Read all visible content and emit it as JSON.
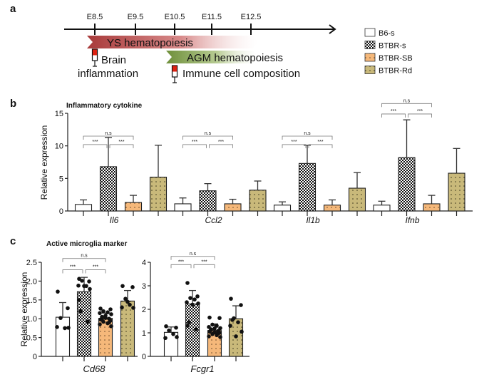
{
  "panel_labels": {
    "a": "a",
    "b": "b",
    "c": "c"
  },
  "timeline": {
    "ticks": [
      "E8.5",
      "E9.5",
      "E10.5",
      "E11.5",
      "E12.5"
    ],
    "ys_banner": "YS hematopoiesis",
    "agm_banner": "AGM hematopoiesis",
    "injection1_line1": "Brain",
    "injection1_line2": "inflammation",
    "injection2": "Immune cell composition",
    "ys_color": "#a83a3a",
    "agm_color": "#6e8f3a"
  },
  "legend": [
    {
      "label": "B6-s",
      "fill": "white"
    },
    {
      "label": "BTBR-s",
      "fill": "checker"
    },
    {
      "label": "BTBR-SB",
      "fill": "#f5b87a"
    },
    {
      "label": "BTBR-Rd",
      "fill": "#c9b97a"
    }
  ],
  "chart_data": [
    {
      "type": "bar",
      "title": "Inflammatory cytokine",
      "ylabel": "Relative expression",
      "ylim": [
        0,
        15
      ],
      "yticks": [
        "0",
        "5",
        "10",
        "15"
      ],
      "categories": [
        "Il6",
        "Ccl2",
        "Il1b",
        "Ifnb"
      ],
      "series": [
        {
          "name": "B6-s",
          "values": [
            1.0,
            1.1,
            0.9,
            0.9
          ],
          "err_top": [
            1.7,
            2.0,
            1.4,
            1.5
          ]
        },
        {
          "name": "BTBR-s",
          "values": [
            6.8,
            3.1,
            7.3,
            8.2
          ],
          "err_top": [
            11.3,
            4.2,
            10.1,
            14.0
          ]
        },
        {
          "name": "BTBR-SB",
          "values": [
            1.3,
            1.1,
            0.9,
            1.1
          ],
          "err_top": [
            2.4,
            1.8,
            1.7,
            2.4
          ]
        },
        {
          "name": "BTBR-Rd",
          "values": [
            5.2,
            3.2,
            3.5,
            5.8
          ],
          "err_top": [
            10.1,
            4.6,
            5.9,
            9.6
          ]
        }
      ],
      "significance": [
        {
          "category": "Il6",
          "pairs": [
            [
              "B6-s",
              "BTBR-s",
              "***"
            ],
            [
              "BTBR-s",
              "BTBR-SB",
              "***"
            ],
            [
              "B6-s",
              "BTBR-SB",
              "n.s"
            ]
          ],
          "levels": [
            10.2,
            11.5
          ]
        },
        {
          "category": "Ccl2",
          "pairs": [
            [
              "B6-s",
              "BTBR-s",
              "***"
            ],
            [
              "BTBR-s",
              "BTBR-SB",
              "***"
            ],
            [
              "B6-s",
              "BTBR-SB",
              "n.s"
            ]
          ],
          "levels": [
            10.2,
            11.5
          ]
        },
        {
          "category": "Il1b",
          "pairs": [
            [
              "B6-s",
              "BTBR-s",
              "***"
            ],
            [
              "BTBR-s",
              "BTBR-SB",
              "***"
            ],
            [
              "B6-s",
              "BTBR-SB",
              "n.s"
            ]
          ],
          "levels": [
            10.2,
            11.5
          ]
        },
        {
          "category": "Ifnb",
          "pairs": [
            [
              "B6-s",
              "BTBR-s",
              "***"
            ],
            [
              "BTBR-s",
              "BTBR-SB",
              "***"
            ],
            [
              "B6-s",
              "BTBR-SB",
              "n.s"
            ]
          ],
          "levels": [
            14.9,
            16.5
          ]
        }
      ]
    },
    {
      "type": "bar",
      "title": "Active microglia marker",
      "ylabel": "Relative expression",
      "category": "Cd68",
      "ylim": [
        0,
        2.5
      ],
      "yticks": [
        "0",
        "0.5",
        "1.0",
        "1.5",
        "2.0",
        "2.5"
      ],
      "series": [
        {
          "name": "B6-s",
          "value": 1.04,
          "err_top": 1.43,
          "points": [
            1.72,
            1.28,
            1.02,
            0.75,
            0.78,
            0.76
          ]
        },
        {
          "name": "BTBR-s",
          "value": 1.72,
          "err_top": 2.1,
          "points": [
            2.06,
            1.99,
            2.01,
            1.87,
            1.88,
            1.79,
            1.87,
            1.2,
            0.92,
            1.5
          ]
        },
        {
          "name": "BTBR-SB",
          "value": 1.01,
          "err_top": 1.15,
          "points": [
            1.27,
            1.25,
            1.2,
            1.17,
            1.15,
            1.12,
            1.08,
            1.05,
            1.0,
            0.98,
            0.95,
            0.92,
            0.88,
            0.85,
            0.8,
            1.02,
            0.97,
            0.9
          ]
        },
        {
          "name": "BTBR-Rd",
          "value": 1.47,
          "err_top": 1.75,
          "points": [
            1.87,
            1.84,
            1.53,
            1.37,
            1.3,
            1.29,
            1.45
          ]
        }
      ],
      "significance": {
        "pairs": [
          [
            "B6-s",
            "BTBR-s",
            "***"
          ],
          [
            "BTBR-s",
            "BTBR-SB",
            "***"
          ],
          [
            "B6-s",
            "BTBR-SB",
            "n.s"
          ]
        ],
        "levels": [
          2.3,
          2.6
        ]
      }
    },
    {
      "type": "bar",
      "category": "Fcgr1",
      "ylim": [
        0,
        4
      ],
      "yticks": [
        "0",
        "1",
        "2",
        "3",
        "4"
      ],
      "series": [
        {
          "name": "B6-s",
          "value": 1.02,
          "err_top": 1.25,
          "points": [
            1.28,
            1.22,
            1.1,
            0.95,
            0.78,
            0.82
          ]
        },
        {
          "name": "BTBR-s",
          "value": 2.23,
          "err_top": 2.8,
          "points": [
            3.12,
            2.55,
            2.48,
            2.42,
            2.3,
            2.25,
            2.2,
            1.45,
            1.15,
            1.3
          ]
        },
        {
          "name": "BTBR-SB",
          "value": 1.1,
          "err_top": 1.38,
          "points": [
            1.65,
            1.63,
            1.35,
            1.3,
            1.25,
            1.2,
            1.18,
            1.12,
            1.08,
            1.05,
            1.0,
            0.95,
            0.9,
            0.85,
            0.82,
            1.02,
            1.15,
            0.98
          ]
        },
        {
          "name": "BTBR-Rd",
          "value": 1.6,
          "err_top": 2.15,
          "points": [
            2.45,
            2.18,
            1.62,
            1.45,
            1.3,
            1.05,
            0.85,
            1.55
          ]
        }
      ],
      "significance": {
        "pairs": [
          [
            "B6-s",
            "BTBR-s",
            "***"
          ],
          [
            "BTBR-s",
            "BTBR-SB",
            "***"
          ],
          [
            "B6-s",
            "BTBR-SB",
            "n.s"
          ]
        ],
        "levels": [
          3.9,
          4.25
        ]
      }
    }
  ]
}
